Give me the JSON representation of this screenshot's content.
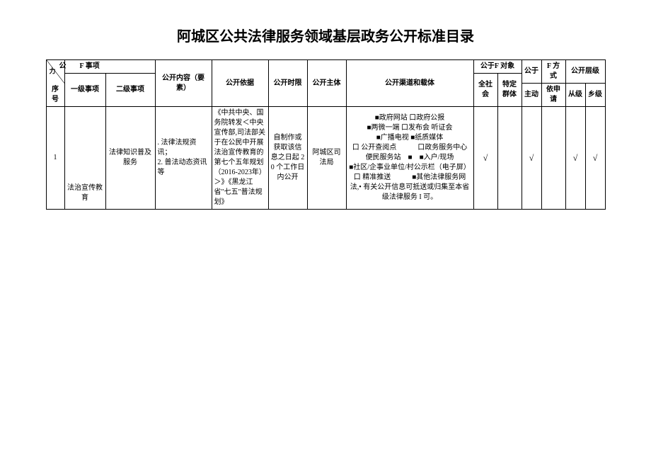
{
  "title": "阿城区公共法律服务领域基层政务公开标准目录",
  "headers": {
    "diag_top": "公",
    "diag_mid": "力",
    "diag_suffix": "F 事项",
    "seq": "序号",
    "level1": "一级事项",
    "level2": "二级事项",
    "content": "公开内容（要素）",
    "basis": "公开依据",
    "time": "公开时限",
    "subject": "公开主体",
    "channel": "公开渠道和载体",
    "target_group": "公于F 对象",
    "target_all": "全社会",
    "target_specific": "特定群体",
    "method_group": "公于",
    "method_sub": "F 方式",
    "method_active": "主动",
    "method_apply": "依申请",
    "level_group": "公开层级",
    "level_county": "从级",
    "level_town": "乡级"
  },
  "row1": {
    "seq": "1",
    "level1": "法治宣传教育",
    "level2": "法律知识普及服务",
    "content": ". 法律法规资讯；\n2. 普法动态资讯等",
    "basis": "《中共中央、国务院转发＜中央宣传部,司法部关于在公民中开展法治宣传教育的第七个五年规划（2016-2023年）＞》《黑龙江省\"七五\"普法规划》",
    "time": "自制作或获取该信息之日起 20 个工作日内公开",
    "subject": "阿城区司法局",
    "channels": [
      "■政府网站 口政府公报",
      "■两微一端 口发布会 听证会",
      "■广播电视 ■纸质媒体",
      "口 公开查阅点　　　口政务服务中心 便民服务站　■　■入户/现场",
      "■社区/企事业单位/村公示栏（电子屏）",
      "口 精准推送　　　■其他法律服务网",
      "法,• 有关公开信息可抵送或归集至本省级法律服务 I 可。"
    ],
    "target_all": "√",
    "target_specific": "",
    "method_active": "√",
    "method_apply": "",
    "level_county": "√",
    "level_town": "√"
  },
  "colwidths": {
    "seq": 26,
    "l1": 58,
    "l2": 70,
    "content": 80,
    "basis": 80,
    "time": 55,
    "subject": 55,
    "channel": 180,
    "tall": 34,
    "tspec": 34,
    "mact": 28,
    "mapp": 34,
    "lcty": 28,
    "ltwn": 28
  }
}
